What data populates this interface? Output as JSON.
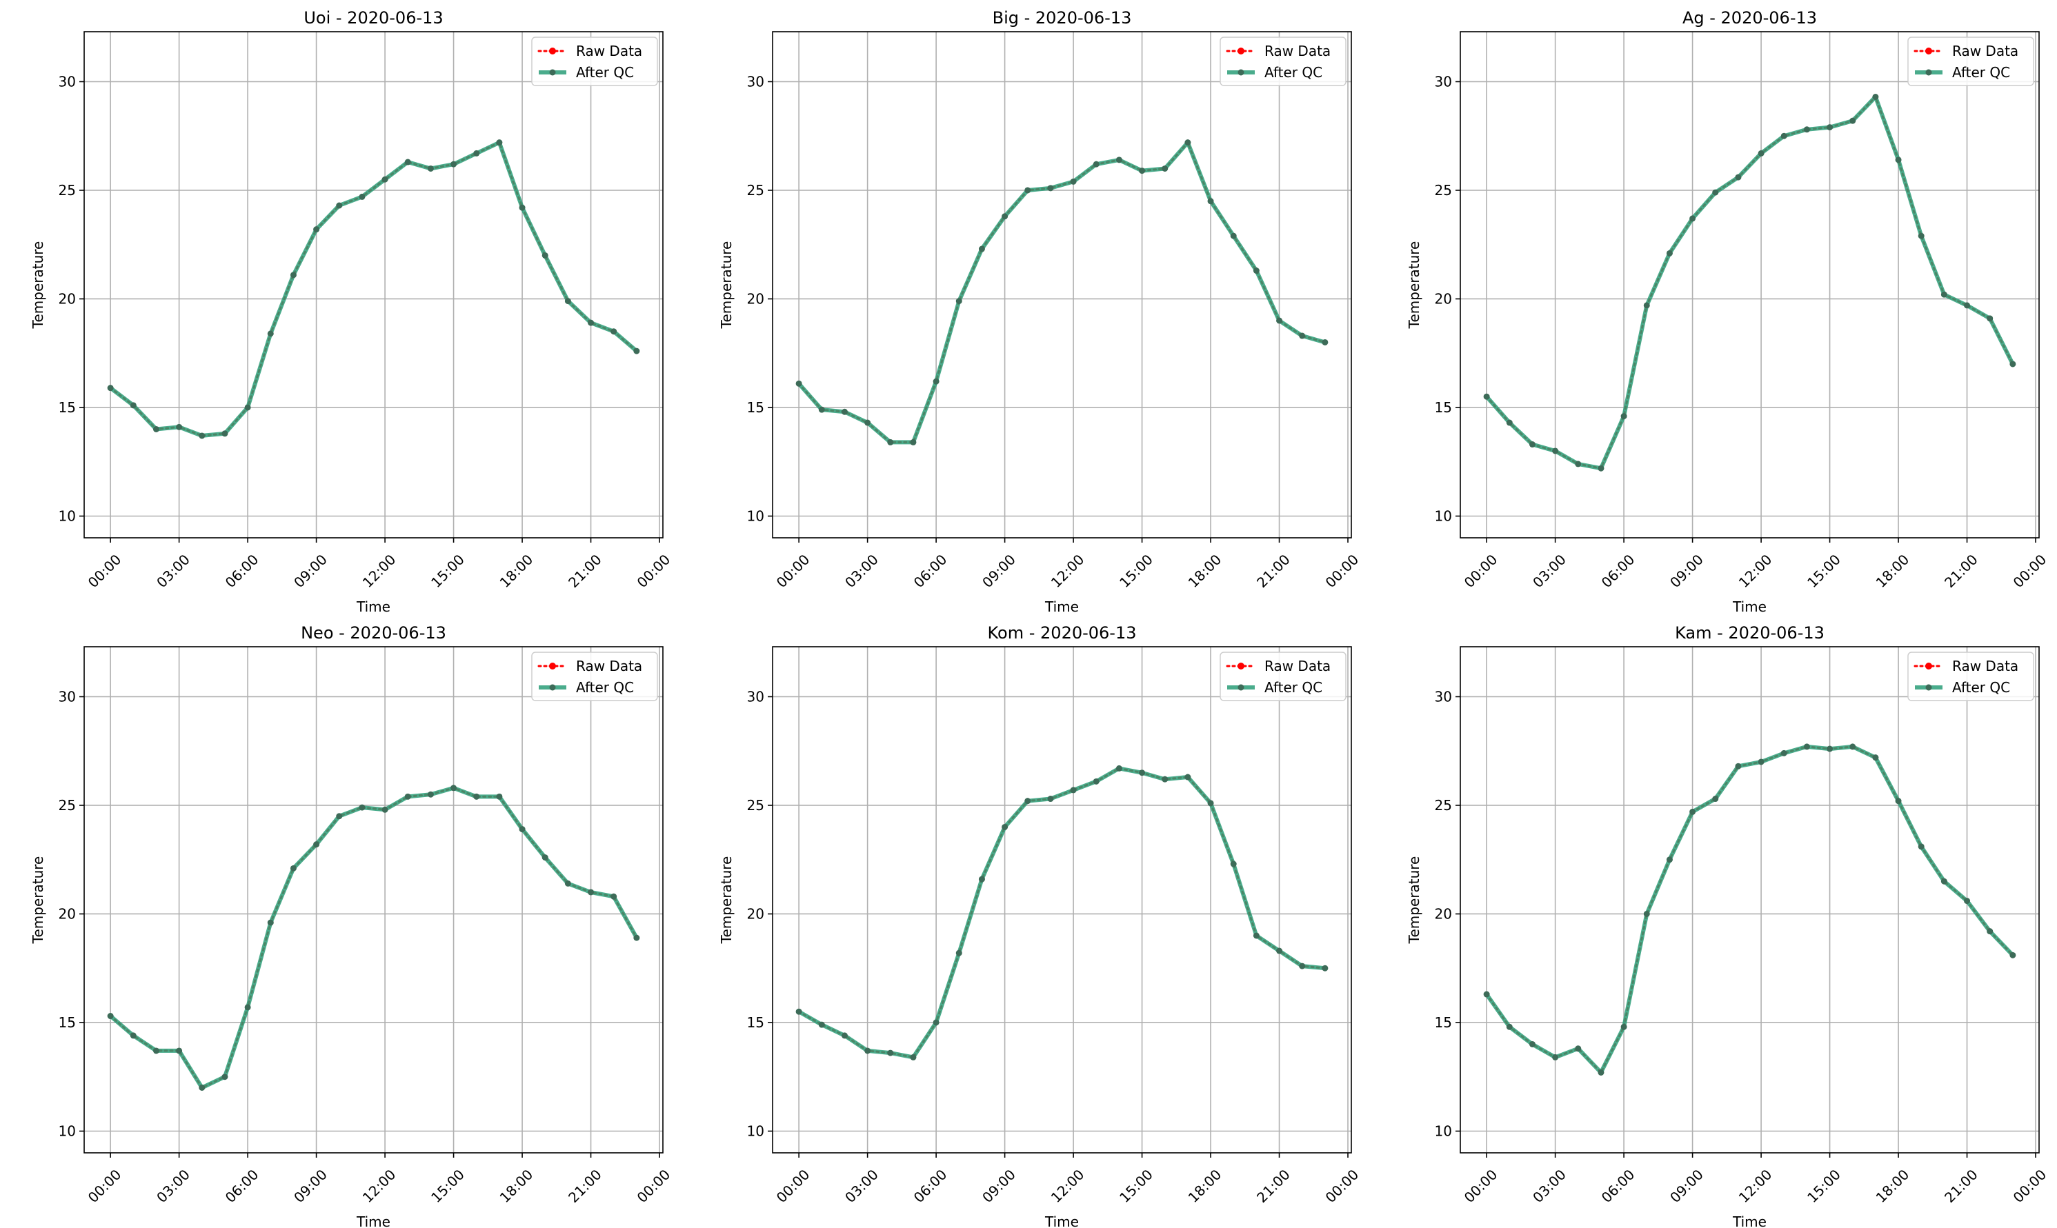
{
  "colors": {
    "raw": "#ff0000",
    "qc": "#2a9d78",
    "grid": "#b0b0b0",
    "axes": "#000000"
  },
  "chart_data": [
    {
      "type": "line",
      "title": "Uoi - 2020-06-13",
      "xlabel": "Time",
      "ylabel": "Temperature",
      "xlim": [
        -1.15,
        24.15
      ],
      "ylim": [
        9.0,
        32.3
      ],
      "x": [
        0,
        1,
        2,
        3,
        4,
        5,
        6,
        7,
        8,
        9,
        10,
        11,
        12,
        13,
        14,
        15,
        16,
        17,
        18,
        19,
        20,
        21,
        22,
        23
      ],
      "x_tick_positions": [
        0,
        3,
        6,
        9,
        12,
        15,
        18,
        21,
        24
      ],
      "x_tick_labels": [
        "00:00",
        "03:00",
        "06:00",
        "09:00",
        "12:00",
        "15:00",
        "18:00",
        "21:00",
        "00:00"
      ],
      "y_ticks": [
        10,
        15,
        20,
        25,
        30
      ],
      "grid": true,
      "legend_position": "top-right",
      "series": [
        {
          "name": "Raw Data",
          "style": "dotted",
          "values": [
            15.9,
            15.1,
            14.0,
            14.1,
            13.7,
            13.8,
            15.0,
            18.4,
            21.1,
            23.2,
            24.3,
            24.7,
            25.5,
            26.3,
            26.0,
            26.2,
            26.7,
            27.2,
            24.2,
            22.0,
            19.9,
            18.9,
            18.5,
            17.6
          ]
        },
        {
          "name": "After QC",
          "style": "solid",
          "values": [
            15.9,
            15.1,
            14.0,
            14.1,
            13.7,
            13.8,
            15.0,
            18.4,
            21.1,
            23.2,
            24.3,
            24.7,
            25.5,
            26.3,
            26.0,
            26.2,
            26.7,
            27.2,
            24.2,
            22.0,
            19.9,
            18.9,
            18.5,
            17.6
          ]
        }
      ]
    },
    {
      "type": "line",
      "title": "Big - 2020-06-13",
      "xlabel": "Time",
      "ylabel": "Temperature",
      "xlim": [
        -1.15,
        24.15
      ],
      "ylim": [
        9.0,
        32.3
      ],
      "x": [
        0,
        1,
        2,
        3,
        4,
        5,
        6,
        7,
        8,
        9,
        10,
        11,
        12,
        13,
        14,
        15,
        16,
        17,
        18,
        19,
        20,
        21,
        22,
        23
      ],
      "x_tick_positions": [
        0,
        3,
        6,
        9,
        12,
        15,
        18,
        21,
        24
      ],
      "x_tick_labels": [
        "00:00",
        "03:00",
        "06:00",
        "09:00",
        "12:00",
        "15:00",
        "18:00",
        "21:00",
        "00:00"
      ],
      "y_ticks": [
        10,
        15,
        20,
        25,
        30
      ],
      "grid": true,
      "legend_position": "top-right",
      "series": [
        {
          "name": "Raw Data",
          "style": "dotted",
          "values": [
            16.1,
            14.9,
            14.8,
            14.3,
            13.4,
            13.4,
            16.2,
            19.9,
            22.3,
            23.8,
            25.0,
            25.1,
            25.4,
            26.2,
            26.4,
            25.9,
            26.0,
            27.2,
            24.5,
            22.9,
            21.3,
            19.0,
            18.3,
            18.0
          ]
        },
        {
          "name": "After QC",
          "style": "solid",
          "values": [
            16.1,
            14.9,
            14.8,
            14.3,
            13.4,
            13.4,
            16.2,
            19.9,
            22.3,
            23.8,
            25.0,
            25.1,
            25.4,
            26.2,
            26.4,
            25.9,
            26.0,
            27.2,
            24.5,
            22.9,
            21.3,
            19.0,
            18.3,
            18.0
          ]
        }
      ]
    },
    {
      "type": "line",
      "title": "Ag - 2020-06-13",
      "xlabel": "Time",
      "ylabel": "Temperature",
      "xlim": [
        -1.15,
        24.15
      ],
      "ylim": [
        9.0,
        32.3
      ],
      "x": [
        0,
        1,
        2,
        3,
        4,
        5,
        6,
        7,
        8,
        9,
        10,
        11,
        12,
        13,
        14,
        15,
        16,
        17,
        18,
        19,
        20,
        21,
        22,
        23
      ],
      "x_tick_positions": [
        0,
        3,
        6,
        9,
        12,
        15,
        18,
        21,
        24
      ],
      "x_tick_labels": [
        "00:00",
        "03:00",
        "06:00",
        "09:00",
        "12:00",
        "15:00",
        "18:00",
        "21:00",
        "00:00"
      ],
      "y_ticks": [
        10,
        15,
        20,
        25,
        30
      ],
      "grid": true,
      "legend_position": "top-right",
      "series": [
        {
          "name": "Raw Data",
          "style": "dotted",
          "values": [
            15.5,
            14.3,
            13.3,
            13.0,
            12.4,
            12.2,
            14.6,
            19.7,
            22.1,
            23.7,
            24.9,
            25.6,
            26.7,
            27.5,
            27.8,
            27.9,
            28.2,
            29.3,
            26.4,
            22.9,
            20.2,
            19.7,
            19.1,
            17.0
          ]
        },
        {
          "name": "After QC",
          "style": "solid",
          "values": [
            15.5,
            14.3,
            13.3,
            13.0,
            12.4,
            12.2,
            14.6,
            19.7,
            22.1,
            23.7,
            24.9,
            25.6,
            26.7,
            27.5,
            27.8,
            27.9,
            28.2,
            29.3,
            26.4,
            22.9,
            20.2,
            19.7,
            19.1,
            17.0
          ]
        }
      ]
    },
    {
      "type": "line",
      "title": "Neo - 2020-06-13",
      "xlabel": "Time",
      "ylabel": "Temperature",
      "xlim": [
        -1.15,
        24.15
      ],
      "ylim": [
        9.0,
        32.3
      ],
      "x": [
        0,
        1,
        2,
        3,
        4,
        5,
        6,
        7,
        8,
        9,
        10,
        11,
        12,
        13,
        14,
        15,
        16,
        17,
        18,
        19,
        20,
        21,
        22,
        23
      ],
      "x_tick_positions": [
        0,
        3,
        6,
        9,
        12,
        15,
        18,
        21,
        24
      ],
      "x_tick_labels": [
        "00:00",
        "03:00",
        "06:00",
        "09:00",
        "12:00",
        "15:00",
        "18:00",
        "21:00",
        "00:00"
      ],
      "y_ticks": [
        10,
        15,
        20,
        25,
        30
      ],
      "grid": true,
      "legend_position": "top-right",
      "series": [
        {
          "name": "Raw Data",
          "style": "dotted",
          "values": [
            15.3,
            14.4,
            13.7,
            13.7,
            12.0,
            12.5,
            15.7,
            19.6,
            22.1,
            23.2,
            24.5,
            24.9,
            24.8,
            25.4,
            25.5,
            25.8,
            25.4,
            25.4,
            23.9,
            22.6,
            21.4,
            21.0,
            20.8,
            18.9
          ]
        },
        {
          "name": "After QC",
          "style": "solid",
          "values": [
            15.3,
            14.4,
            13.7,
            13.7,
            12.0,
            12.5,
            15.7,
            19.6,
            22.1,
            23.2,
            24.5,
            24.9,
            24.8,
            25.4,
            25.5,
            25.8,
            25.4,
            25.4,
            23.9,
            22.6,
            21.4,
            21.0,
            20.8,
            18.9
          ]
        }
      ]
    },
    {
      "type": "line",
      "title": "Kom - 2020-06-13",
      "xlabel": "Time",
      "ylabel": "Temperature",
      "xlim": [
        -1.15,
        24.15
      ],
      "ylim": [
        9.0,
        32.3
      ],
      "x": [
        0,
        1,
        2,
        3,
        4,
        5,
        6,
        7,
        8,
        9,
        10,
        11,
        12,
        13,
        14,
        15,
        16,
        17,
        18,
        19,
        20,
        21,
        22,
        23
      ],
      "x_tick_positions": [
        0,
        3,
        6,
        9,
        12,
        15,
        18,
        21,
        24
      ],
      "x_tick_labels": [
        "00:00",
        "03:00",
        "06:00",
        "09:00",
        "12:00",
        "15:00",
        "18:00",
        "21:00",
        "00:00"
      ],
      "y_ticks": [
        10,
        15,
        20,
        25,
        30
      ],
      "grid": true,
      "legend_position": "top-right",
      "series": [
        {
          "name": "Raw Data",
          "style": "dotted",
          "values": [
            15.5,
            14.9,
            14.4,
            13.7,
            13.6,
            13.4,
            15.0,
            18.2,
            21.6,
            24.0,
            25.2,
            25.3,
            25.7,
            26.1,
            26.7,
            26.5,
            26.2,
            26.3,
            25.1,
            22.3,
            19.0,
            18.3,
            17.6,
            17.5
          ]
        },
        {
          "name": "After QC",
          "style": "solid",
          "values": [
            15.5,
            14.9,
            14.4,
            13.7,
            13.6,
            13.4,
            15.0,
            18.2,
            21.6,
            24.0,
            25.2,
            25.3,
            25.7,
            26.1,
            26.7,
            26.5,
            26.2,
            26.3,
            25.1,
            22.3,
            19.0,
            18.3,
            17.6,
            17.5
          ]
        }
      ]
    },
    {
      "type": "line",
      "title": "Kam - 2020-06-13",
      "xlabel": "Time",
      "ylabel": "Temperature",
      "xlim": [
        -1.15,
        24.15
      ],
      "ylim": [
        9.0,
        32.3
      ],
      "x": [
        0,
        1,
        2,
        3,
        4,
        5,
        6,
        7,
        8,
        9,
        10,
        11,
        12,
        13,
        14,
        15,
        16,
        17,
        18,
        19,
        20,
        21,
        22,
        23
      ],
      "x_tick_positions": [
        0,
        3,
        6,
        9,
        12,
        15,
        18,
        21,
        24
      ],
      "x_tick_labels": [
        "00:00",
        "03:00",
        "06:00",
        "09:00",
        "12:00",
        "15:00",
        "18:00",
        "21:00",
        "00:00"
      ],
      "y_ticks": [
        10,
        15,
        20,
        25,
        30
      ],
      "grid": true,
      "legend_position": "top-right",
      "series": [
        {
          "name": "Raw Data",
          "style": "dotted",
          "values": [
            16.3,
            14.8,
            14.0,
            13.4,
            13.8,
            12.7,
            14.8,
            20.0,
            22.5,
            24.7,
            25.3,
            26.8,
            27.0,
            27.4,
            27.7,
            27.6,
            27.7,
            27.2,
            25.2,
            23.1,
            21.5,
            20.6,
            19.2,
            18.1
          ]
        },
        {
          "name": "After QC",
          "style": "solid",
          "values": [
            16.3,
            14.8,
            14.0,
            13.4,
            13.8,
            12.7,
            14.8,
            20.0,
            22.5,
            24.7,
            25.3,
            26.8,
            27.0,
            27.4,
            27.7,
            27.6,
            27.7,
            27.2,
            25.2,
            23.1,
            21.5,
            20.6,
            19.2,
            18.1
          ]
        }
      ]
    }
  ]
}
